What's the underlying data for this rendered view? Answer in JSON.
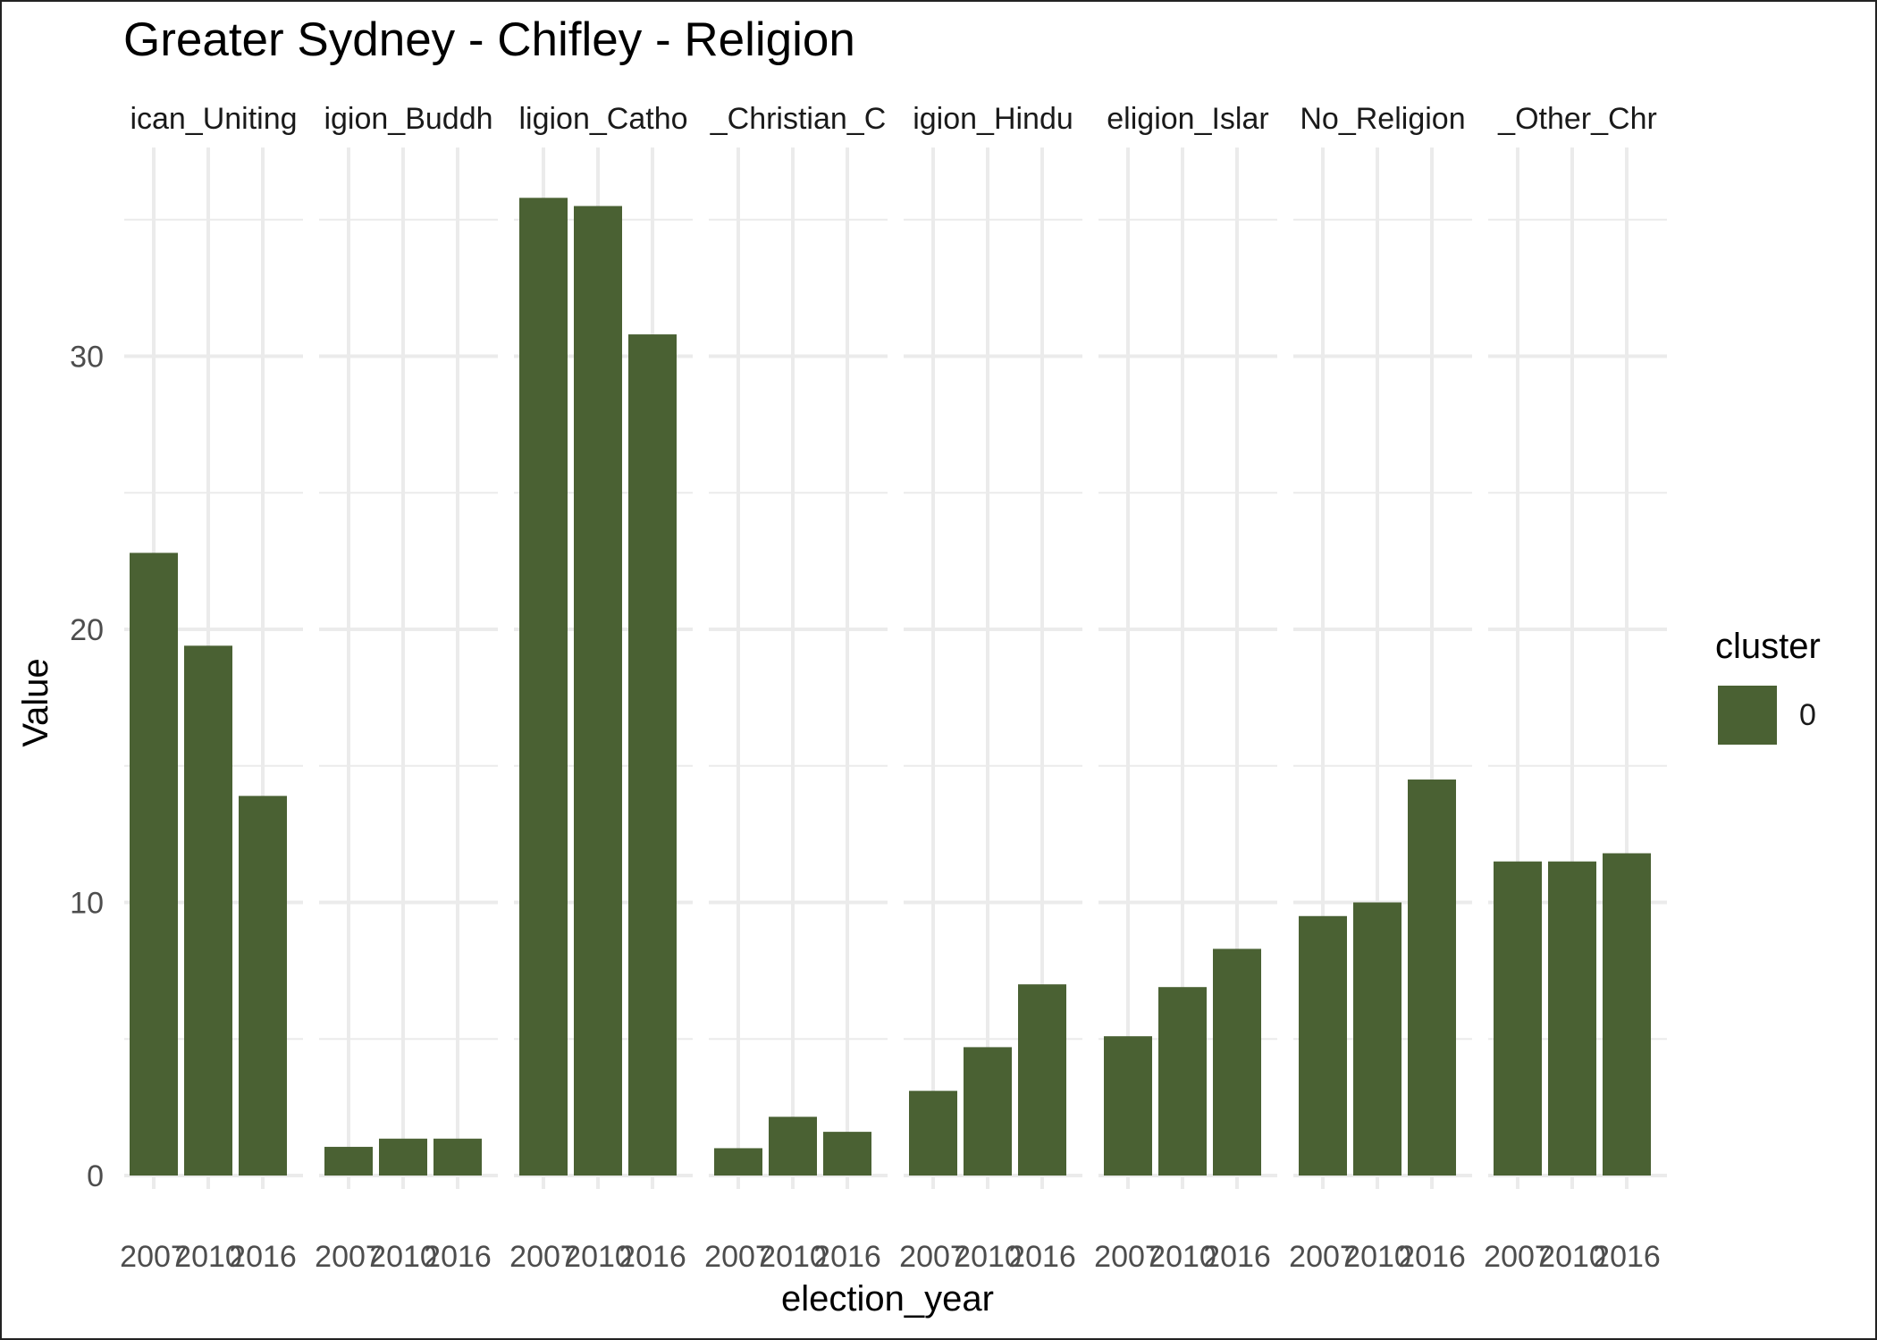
{
  "chart_data": {
    "type": "bar",
    "title": "Greater Sydney - Chifley - Religion",
    "xlabel": "election_year",
    "ylabel": "Value",
    "ylim": [
      0,
      36
    ],
    "yticks": [
      0,
      10,
      20,
      30
    ],
    "grid": true,
    "categories": [
      "2007",
      "2010",
      "2016"
    ],
    "facets": [
      {
        "label": "ican_Uniting",
        "values": [
          22.8,
          19.4,
          13.9
        ]
      },
      {
        "label": "igion_Buddh",
        "values": [
          1.05,
          1.35,
          1.35
        ]
      },
      {
        "label": "ligion_Catho",
        "values": [
          35.8,
          35.5,
          30.8
        ]
      },
      {
        "label": "_Christian_C",
        "values": [
          1.0,
          2.15,
          1.6
        ]
      },
      {
        "label": "igion_Hindu",
        "values": [
          3.1,
          4.7,
          7.0
        ]
      },
      {
        "label": "eligion_Islar",
        "values": [
          5.1,
          6.9,
          8.3
        ]
      },
      {
        "label": "No_Religion",
        "values": [
          9.5,
          10.0,
          14.5
        ]
      },
      {
        "label": "_Other_Chr",
        "values": [
          11.5,
          11.5,
          11.8
        ]
      }
    ],
    "tick_labels": [
      "2007",
      "2010",
      "2016"
    ],
    "legend": {
      "title": "cluster",
      "entries": [
        {
          "label": "0",
          "color": "#4a6133"
        }
      ],
      "position": "right"
    },
    "bar_color": "#4a6133"
  }
}
